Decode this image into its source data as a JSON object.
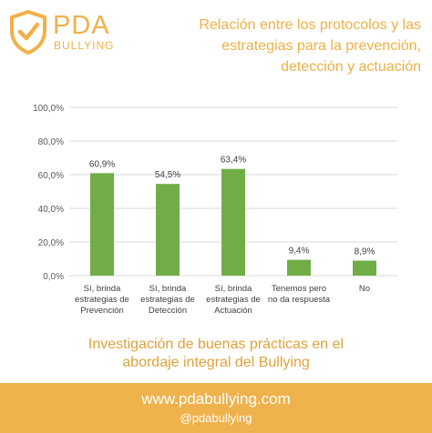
{
  "logo": {
    "line1": "PDA",
    "line2": "BULLYING",
    "icon": "shield-check-icon",
    "color": "#f2b04a"
  },
  "title_lines": [
    "Relación entre los protocolos y las",
    "estrategias para la prevención,",
    "detección y actuación"
  ],
  "chart_data": {
    "type": "bar",
    "categories": [
      [
        "Sí, brinda",
        "estrategias de",
        "Prevención"
      ],
      [
        "Sí, brinda",
        "estrategias de",
        "Detección"
      ],
      [
        "Sí, brinda",
        "estrategias de",
        "Actuación"
      ],
      [
        "Tenemos pero",
        "no da respuesta"
      ],
      [
        "No"
      ]
    ],
    "values": [
      60.9,
      54.5,
      63.4,
      9.4,
      8.9
    ],
    "data_labels": [
      "60,9%",
      "54,5%",
      "63,4%",
      "9,4%",
      "8,9%"
    ],
    "ylim": [
      0,
      100
    ],
    "yticks": [
      0,
      20,
      40,
      60,
      80,
      100
    ],
    "ytick_labels": [
      "0,0%",
      "20,0%",
      "40,0%",
      "60,0%",
      "80,0%",
      "100,0%"
    ],
    "grid": true,
    "legend": "none",
    "bar_color": "#70ad47"
  },
  "caption_lines": [
    "Investigación de buenas prácticas en el",
    "abordaje integral del Bullying"
  ],
  "footer": {
    "url": "www.pdabullying.com",
    "handle": "@pdabullying",
    "background": "#f0b24d"
  }
}
